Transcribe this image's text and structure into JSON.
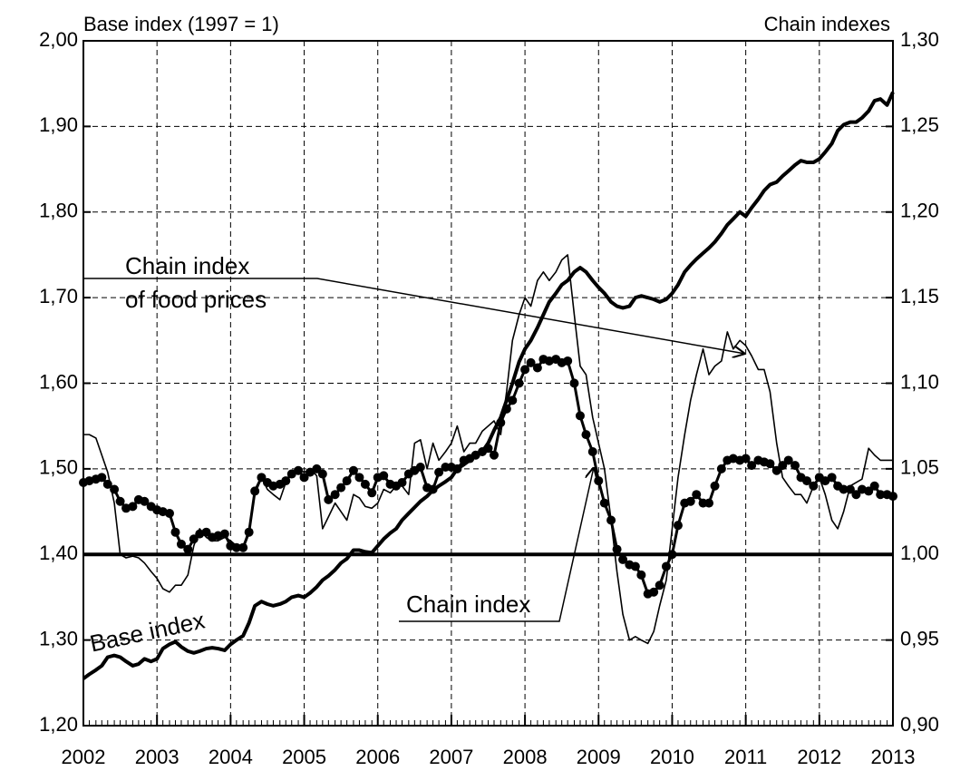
{
  "chart_data": {
    "type": "line",
    "ylabel": "Base index (1997 = 1)",
    "y2label": "Chain indexes",
    "xlim": [
      2002,
      2013
    ],
    "xticks": [
      2002,
      2003,
      2004,
      2005,
      2006,
      2007,
      2008,
      2009,
      2010,
      2011,
      2012,
      2013
    ],
    "ylim": [
      1.2,
      2.0
    ],
    "yticks": [
      {
        "value": 1.2,
        "label": "1,20"
      },
      {
        "value": 1.3,
        "label": "1,30"
      },
      {
        "value": 1.4,
        "label": "1,40"
      },
      {
        "value": 1.5,
        "label": "1,50"
      },
      {
        "value": 1.6,
        "label": "1,60"
      },
      {
        "value": 1.7,
        "label": "1,70"
      },
      {
        "value": 1.8,
        "label": "1,80"
      },
      {
        "value": 1.9,
        "label": "1,90"
      },
      {
        "value": 2.0,
        "label": "2,00"
      }
    ],
    "y2lim": [
      0.9,
      1.3
    ],
    "y2ticks": [
      {
        "value": 0.9,
        "label": "0,90"
      },
      {
        "value": 0.95,
        "label": "0,95"
      },
      {
        "value": 1.0,
        "label": "1,00"
      },
      {
        "value": 1.05,
        "label": "1,05"
      },
      {
        "value": 1.1,
        "label": "1,10"
      },
      {
        "value": 1.15,
        "label": "1,15"
      },
      {
        "value": 1.2,
        "label": "1,20"
      },
      {
        "value": 1.25,
        "label": "1,25"
      },
      {
        "value": 1.3,
        "label": "1,30"
      }
    ],
    "grid": true,
    "reference_line": 1.4,
    "x": [
      2002.0,
      2002.08,
      2002.17,
      2002.25,
      2002.33,
      2002.42,
      2002.5,
      2002.58,
      2002.67,
      2002.75,
      2002.83,
      2002.92,
      2003.0,
      2003.08,
      2003.17,
      2003.25,
      2003.33,
      2003.42,
      2003.5,
      2003.58,
      2003.67,
      2003.75,
      2003.83,
      2003.92,
      2004.0,
      2004.08,
      2004.17,
      2004.25,
      2004.33,
      2004.42,
      2004.5,
      2004.58,
      2004.67,
      2004.75,
      2004.83,
      2004.92,
      2005.0,
      2005.08,
      2005.17,
      2005.25,
      2005.33,
      2005.42,
      2005.5,
      2005.58,
      2005.67,
      2005.75,
      2005.83,
      2005.92,
      2006.0,
      2006.08,
      2006.17,
      2006.25,
      2006.33,
      2006.42,
      2006.5,
      2006.58,
      2006.67,
      2006.75,
      2006.83,
      2006.92,
      2007.0,
      2007.08,
      2007.17,
      2007.25,
      2007.33,
      2007.42,
      2007.5,
      2007.58,
      2007.67,
      2007.75,
      2007.83,
      2007.92,
      2008.0,
      2008.08,
      2008.17,
      2008.25,
      2008.33,
      2008.42,
      2008.5,
      2008.58,
      2008.67,
      2008.75,
      2008.83,
      2008.92,
      2009.0,
      2009.08,
      2009.17,
      2009.25,
      2009.33,
      2009.42,
      2009.5,
      2009.58,
      2009.67,
      2009.75,
      2009.83,
      2009.92,
      2010.0,
      2010.08,
      2010.17,
      2010.25,
      2010.33,
      2010.42,
      2010.5,
      2010.58,
      2010.67,
      2010.75,
      2010.83,
      2010.92,
      2011.0,
      2011.08,
      2011.17,
      2011.25,
      2011.33,
      2011.42,
      2011.5,
      2011.58,
      2011.67,
      2011.75,
      2011.83,
      2011.92,
      2012.0,
      2012.08,
      2012.17,
      2012.25,
      2012.33,
      2012.42,
      2012.5,
      2012.58,
      2012.67,
      2012.75,
      2012.83,
      2012.92,
      2013.0
    ],
    "series": [
      {
        "name": "Base index",
        "color": "#000000",
        "axis": "y",
        "width": 4,
        "values": [
          1.255,
          1.26,
          1.265,
          1.27,
          1.28,
          1.282,
          1.28,
          1.275,
          1.27,
          1.272,
          1.278,
          1.275,
          1.278,
          1.29,
          1.295,
          1.298,
          1.292,
          1.287,
          1.285,
          1.287,
          1.29,
          1.291,
          1.29,
          1.288,
          1.295,
          1.3,
          1.305,
          1.32,
          1.34,
          1.345,
          1.342,
          1.34,
          1.342,
          1.345,
          1.35,
          1.352,
          1.35,
          1.355,
          1.362,
          1.37,
          1.375,
          1.382,
          1.39,
          1.395,
          1.405,
          1.405,
          1.403,
          1.402,
          1.41,
          1.418,
          1.425,
          1.43,
          1.44,
          1.448,
          1.455,
          1.462,
          1.468,
          1.475,
          1.48,
          1.485,
          1.49,
          1.5,
          1.505,
          1.51,
          1.515,
          1.52,
          1.53,
          1.545,
          1.56,
          1.58,
          1.6,
          1.625,
          1.64,
          1.65,
          1.665,
          1.68,
          1.695,
          1.705,
          1.715,
          1.72,
          1.73,
          1.735,
          1.73,
          1.72,
          1.712,
          1.705,
          1.695,
          1.69,
          1.688,
          1.69,
          1.7,
          1.702,
          1.7,
          1.698,
          1.695,
          1.698,
          1.705,
          1.715,
          1.73,
          1.738,
          1.745,
          1.752,
          1.758,
          1.765,
          1.775,
          1.785,
          1.792,
          1.8,
          1.795,
          1.805,
          1.815,
          1.825,
          1.832,
          1.835,
          1.842,
          1.848,
          1.855,
          1.86,
          1.858,
          1.858,
          1.862,
          1.87,
          1.88,
          1.895,
          1.902,
          1.905,
          1.905,
          1.91,
          1.918,
          1.93,
          1.932,
          1.925,
          1.94
        ]
      },
      {
        "name": "Chain index",
        "color": "#000000",
        "axis": "y2",
        "width": 3,
        "marker": true,
        "values": [
          1.042,
          1.043,
          1.044,
          1.045,
          1.041,
          1.038,
          1.031,
          1.027,
          1.028,
          1.032,
          1.031,
          1.028,
          1.026,
          1.025,
          1.024,
          1.013,
          1.006,
          1.003,
          1.009,
          1.012,
          1.013,
          1.01,
          1.011,
          1.012,
          1.005,
          1.004,
          1.004,
          1.013,
          1.037,
          1.045,
          1.042,
          1.04,
          1.041,
          1.043,
          1.047,
          1.049,
          1.045,
          1.048,
          1.05,
          1.047,
          1.032,
          1.035,
          1.039,
          1.043,
          1.049,
          1.045,
          1.041,
          1.036,
          1.045,
          1.046,
          1.041,
          1.04,
          1.042,
          1.047,
          1.049,
          1.051,
          1.039,
          1.038,
          1.048,
          1.051,
          1.051,
          1.05,
          1.055,
          1.056,
          1.058,
          1.06,
          1.062,
          1.058,
          1.077,
          1.085,
          1.09,
          1.1,
          1.108,
          1.112,
          1.109,
          1.114,
          1.113,
          1.114,
          1.112,
          1.113,
          1.1,
          1.081,
          1.07,
          1.06,
          1.043,
          1.03,
          1.02,
          1.003,
          0.997,
          0.994,
          0.993,
          0.988,
          0.977,
          0.978,
          0.982,
          0.993,
          1.0,
          1.017,
          1.03,
          1.031,
          1.035,
          1.03,
          1.03,
          1.04,
          1.05,
          1.055,
          1.056,
          1.055,
          1.056,
          1.052,
          1.055,
          1.054,
          1.053,
          1.049,
          1.052,
          1.055,
          1.052,
          1.045,
          1.043,
          1.04,
          1.045,
          1.043,
          1.045,
          1.04,
          1.038,
          1.038,
          1.035,
          1.038,
          1.037,
          1.04,
          1.035,
          1.035,
          1.034
        ]
      },
      {
        "name": "Chain index\nof food prices",
        "color": "#000000",
        "axis": "y2",
        "width": 1.6,
        "values": [
          1.07,
          1.07,
          1.068,
          1.058,
          1.048,
          1.03,
          1.0,
          0.998,
          0.999,
          0.998,
          0.995,
          0.99,
          0.986,
          0.98,
          0.978,
          0.982,
          0.982,
          0.988,
          1.005,
          1.015,
          1.01,
          1.008,
          1.008,
          1.01,
          1.008,
          1.005,
          1.004,
          1.015,
          1.035,
          1.045,
          1.038,
          1.035,
          1.032,
          1.042,
          1.048,
          1.05,
          1.048,
          1.05,
          1.046,
          1.015,
          1.022,
          1.03,
          1.025,
          1.02,
          1.035,
          1.033,
          1.028,
          1.027,
          1.03,
          1.038,
          1.036,
          1.04,
          1.04,
          1.035,
          1.065,
          1.067,
          1.05,
          1.065,
          1.055,
          1.06,
          1.065,
          1.075,
          1.06,
          1.065,
          1.065,
          1.072,
          1.075,
          1.078,
          1.07,
          1.095,
          1.125,
          1.14,
          1.15,
          1.145,
          1.16,
          1.165,
          1.16,
          1.165,
          1.172,
          1.175,
          1.14,
          1.11,
          1.105,
          1.08,
          1.065,
          1.05,
          1.02,
          0.99,
          0.965,
          0.95,
          0.952,
          0.95,
          0.948,
          0.955,
          0.97,
          0.985,
          1.015,
          1.045,
          1.07,
          1.09,
          1.105,
          1.12,
          1.105,
          1.11,
          1.113,
          1.13,
          1.12,
          1.125,
          1.122,
          1.116,
          1.108,
          1.108,
          1.095,
          1.065,
          1.045,
          1.04,
          1.035,
          1.035,
          1.03,
          1.04,
          1.045,
          1.035,
          1.02,
          1.015,
          1.025,
          1.04,
          1.042,
          1.044,
          1.062,
          1.058,
          1.055,
          1.055,
          1.055
        ]
      }
    ]
  }
}
